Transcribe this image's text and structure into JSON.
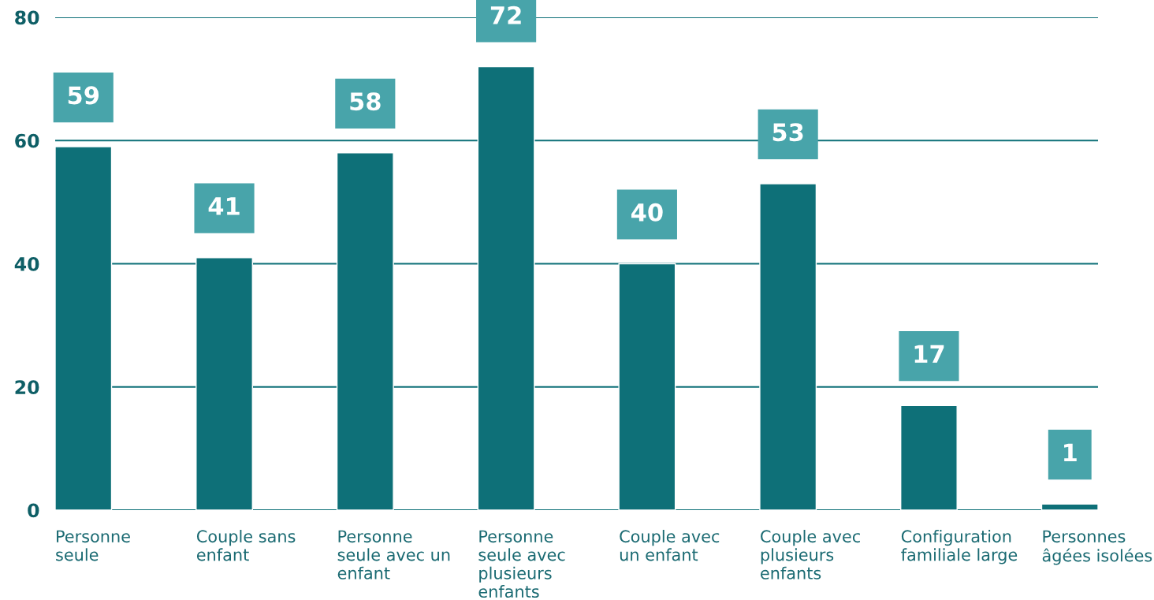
{
  "chart_data": {
    "type": "bar",
    "categories": [
      "Personne\nseule",
      "Couple sans\nenfant",
      "Personne\nseule avec un\nenfant",
      "Personne\nseule avec\nplusieurs\nenfants",
      "Couple avec\nun enfant",
      "Couple avec\nplusieurs\nenfants",
      "Configuration\nfamiliale large",
      "Personnes\nâgées isolées"
    ],
    "values": [
      59,
      41,
      58,
      72,
      40,
      53,
      17,
      1
    ],
    "color": "#0e7078",
    "ylim": [
      0,
      80
    ],
    "yticks": [
      0,
      20,
      40,
      60,
      80
    ],
    "grid": "y",
    "data_labels": true,
    "legend": false
  }
}
